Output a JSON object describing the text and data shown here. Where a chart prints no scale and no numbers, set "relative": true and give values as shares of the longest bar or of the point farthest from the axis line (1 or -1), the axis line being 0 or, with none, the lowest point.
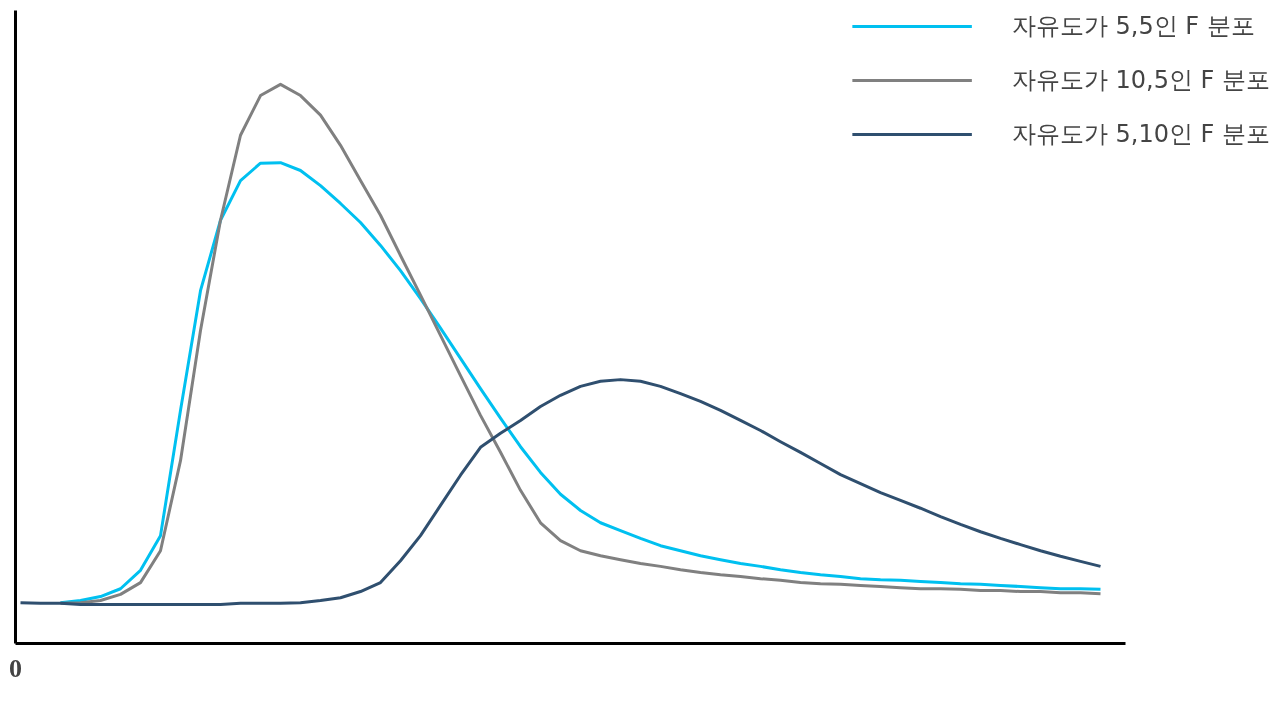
{
  "chart_data": {
    "type": "line",
    "relative": true,
    "legend": "top right",
    "annotations": [
      "0"
    ],
    "categories": [
      null,
      null,
      null,
      null,
      null,
      null,
      null,
      null,
      null,
      null,
      null,
      null,
      null,
      null,
      null,
      null,
      null,
      null,
      null,
      null,
      null,
      null,
      null,
      null,
      null,
      null,
      null,
      null,
      null,
      null,
      null,
      null,
      null,
      null,
      null,
      null,
      null,
      null,
      null,
      null,
      null,
      null,
      null,
      null,
      null,
      null,
      null,
      null,
      null,
      null,
      null,
      null,
      null,
      null,
      null
    ],
    "series": [
      {
        "name": "자유도가 5,5인 F 분포",
        "color": "#00c0f0",
        "values": [
          null,
          null,
          0.073,
          0.077,
          0.084,
          0.098,
          0.131,
          0.193,
          0.417,
          0.631,
          0.757,
          0.828,
          0.859,
          0.86,
          0.846,
          0.819,
          0.787,
          0.753,
          0.712,
          0.667,
          0.617,
          0.564,
          0.51,
          0.456,
          0.403,
          0.352,
          0.306,
          0.267,
          0.238,
          0.216,
          0.202,
          0.188,
          0.175,
          0.166,
          0.157,
          0.15,
          0.143,
          0.138,
          0.132,
          0.127,
          0.123,
          0.12,
          0.116,
          0.114,
          0.113,
          0.111,
          0.109,
          0.107,
          0.106,
          0.104,
          0.102,
          0.1,
          0.098,
          0.098,
          0.097
        ]
      },
      {
        "name": "자유도가 10,5인 F 분포",
        "color": "#808080",
        "values": [
          null,
          null,
          0.072,
          0.073,
          0.077,
          0.088,
          0.109,
          0.166,
          0.327,
          0.56,
          0.757,
          0.909,
          0.98,
          1.0,
          0.98,
          0.945,
          0.891,
          0.828,
          0.766,
          0.694,
          0.623,
          0.551,
          0.479,
          0.408,
          0.342,
          0.274,
          0.216,
          0.184,
          0.166,
          0.157,
          0.15,
          0.143,
          0.138,
          0.132,
          0.127,
          0.123,
          0.12,
          0.116,
          0.113,
          0.109,
          0.107,
          0.106,
          0.104,
          0.102,
          0.1,
          0.098,
          0.098,
          0.097,
          0.095,
          0.095,
          0.093,
          0.093,
          0.091,
          0.091,
          0.089
        ]
      },
      {
        "name": "자유도가 5,10인 F 분포",
        "color": "#2f4f6f",
        "values": [
          0.073,
          0.072,
          0.072,
          0.07,
          0.07,
          0.07,
          0.07,
          0.07,
          0.07,
          0.07,
          0.07,
          0.072,
          0.072,
          0.072,
          0.073,
          0.077,
          0.082,
          0.093,
          0.109,
          0.148,
          0.193,
          0.247,
          0.301,
          0.351,
          0.376,
          0.399,
          0.424,
          0.444,
          0.46,
          0.469,
          0.472,
          0.469,
          0.46,
          0.447,
          0.433,
          0.417,
          0.399,
          0.381,
          0.361,
          0.342,
          0.322,
          0.302,
          0.286,
          0.27,
          0.256,
          0.242,
          0.227,
          0.213,
          0.2,
          0.188,
          0.177,
          0.166,
          0.156,
          0.147,
          0.138
        ]
      }
    ]
  }
}
